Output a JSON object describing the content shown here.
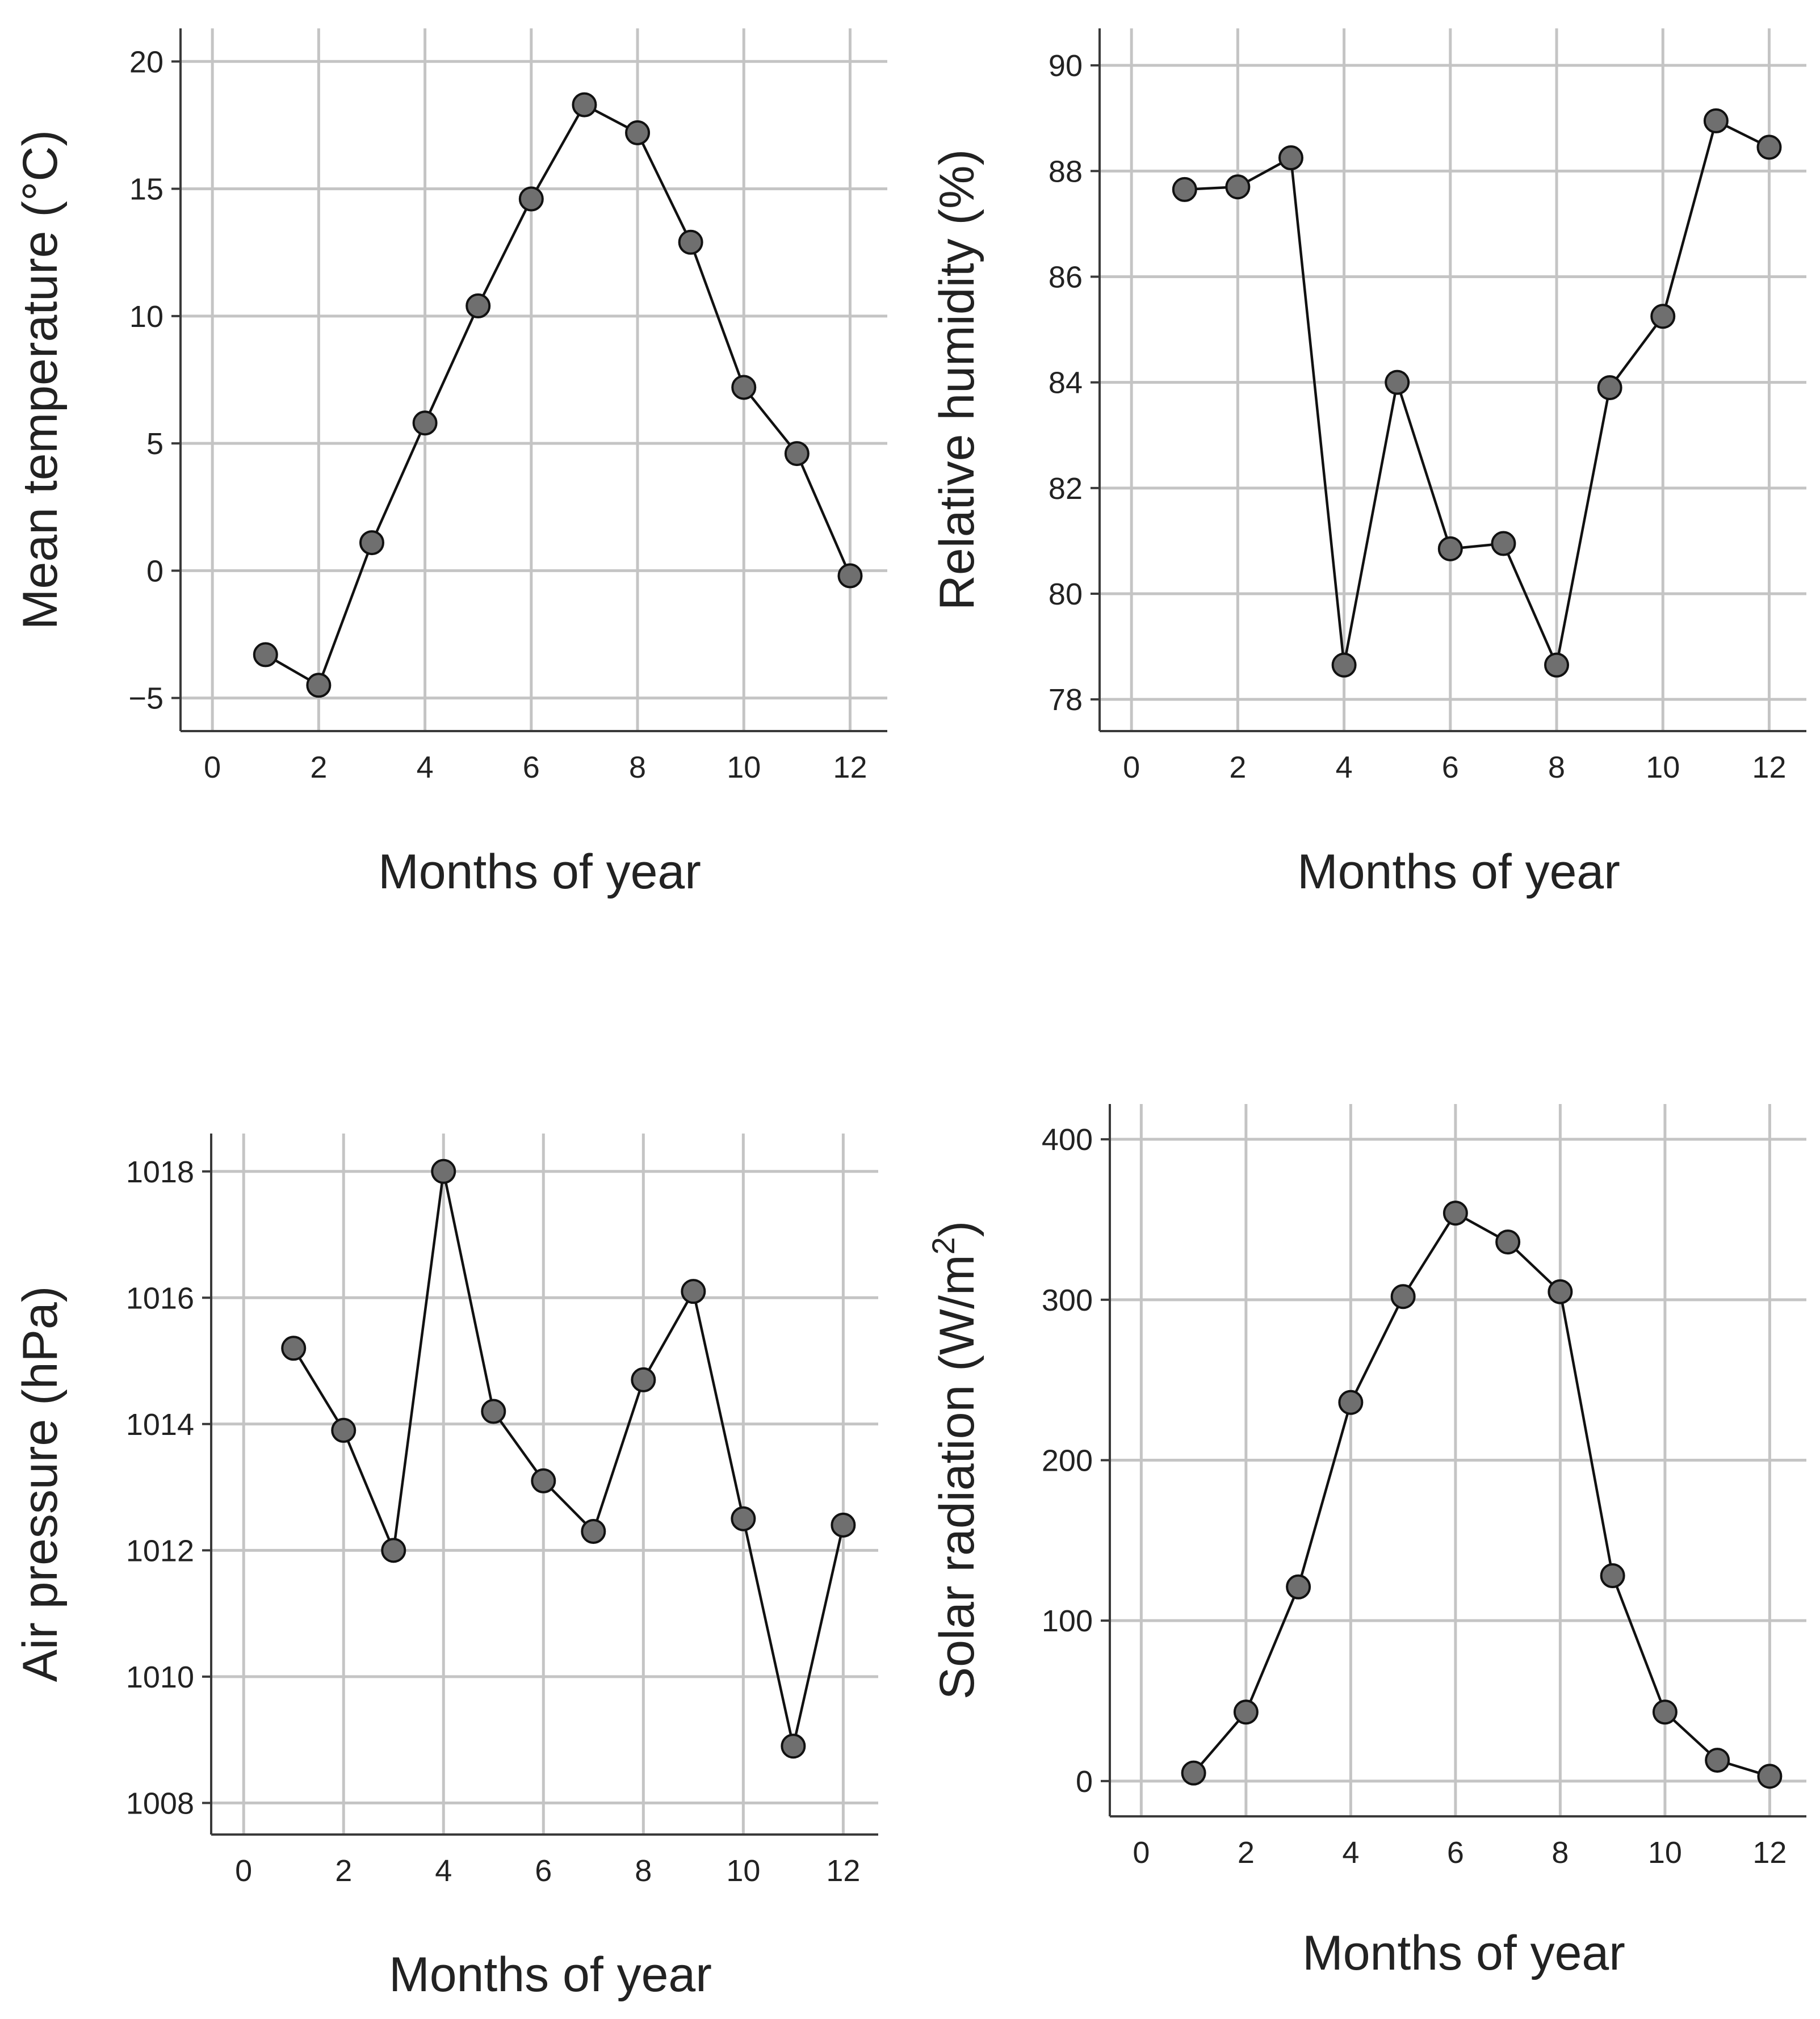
{
  "colors": {
    "marker_fill": "#6f6f6f",
    "line": "#111111",
    "grid": "#c4c4c4",
    "background": "#ffffff"
  },
  "chart_data": [
    {
      "type": "line",
      "xlabel": "Months of year",
      "ylabel": "Mean temperature (°C)",
      "ylabel_main": "Mean temperature (°C)",
      "ylabel_sup": "",
      "ylabel_tail": "",
      "xlim": [
        -0.6,
        12.7
      ],
      "ylim": [
        -6.3,
        21.3
      ],
      "xticks": [
        "0",
        "2",
        "4",
        "6",
        "8",
        "10",
        "12"
      ],
      "xtick_values": [
        0,
        2,
        4,
        6,
        8,
        10,
        12
      ],
      "yticks": [
        "20",
        "15",
        "10",
        "5",
        "0",
        "−5"
      ],
      "ytick_values": [
        20,
        15,
        10,
        5,
        0,
        -5
      ],
      "grid": true,
      "x": [
        1,
        2,
        3,
        4,
        5,
        6,
        7,
        8,
        9,
        10,
        11,
        12
      ],
      "y": [
        -3.3,
        -4.5,
        1.1,
        5.8,
        10.4,
        14.6,
        18.3,
        17.2,
        12.9,
        7.2,
        4.6,
        -0.2
      ]
    },
    {
      "type": "line",
      "xlabel": "Months of year",
      "ylabel": "Relative humidity (%)",
      "ylabel_main": "Relative humidity (%)",
      "ylabel_sup": "",
      "ylabel_tail": "",
      "xlim": [
        -0.6,
        12.7
      ],
      "ylim": [
        77.4,
        90.7
      ],
      "xticks": [
        "0",
        "2",
        "4",
        "6",
        "8",
        "10",
        "12"
      ],
      "xtick_values": [
        0,
        2,
        4,
        6,
        8,
        10,
        12
      ],
      "yticks": [
        "90",
        "88",
        "86",
        "84",
        "82",
        "80",
        "78"
      ],
      "ytick_values": [
        90,
        88,
        86,
        84,
        82,
        80,
        78
      ],
      "grid": true,
      "x": [
        1,
        2,
        3,
        4,
        5,
        6,
        7,
        8,
        9,
        10,
        11,
        12
      ],
      "y": [
        87.65,
        87.7,
        88.25,
        78.65,
        84.0,
        80.85,
        80.95,
        78.65,
        83.9,
        85.25,
        88.95,
        88.45
      ]
    },
    {
      "type": "line",
      "xlabel": "Months of year",
      "ylabel": "Air pressure (hPa)",
      "ylabel_main": "Air pressure (hPa)",
      "ylabel_sup": "",
      "ylabel_tail": "",
      "xlim": [
        -0.65,
        12.7
      ],
      "ylim": [
        1007.5,
        1018.6
      ],
      "xticks": [
        "0",
        "2",
        "4",
        "6",
        "8",
        "10",
        "12"
      ],
      "xtick_values": [
        0,
        2,
        4,
        6,
        8,
        10,
        12
      ],
      "yticks": [
        "1018",
        "1016",
        "1014",
        "1012",
        "1010",
        "1008"
      ],
      "ytick_values": [
        1018,
        1016,
        1014,
        1012,
        1010,
        1008
      ],
      "grid": true,
      "x": [
        1,
        2,
        3,
        4,
        5,
        6,
        7,
        8,
        9,
        10,
        11,
        12
      ],
      "y": [
        1015.2,
        1013.9,
        1012.0,
        1018.0,
        1014.2,
        1013.1,
        1012.3,
        1014.7,
        1016.1,
        1012.5,
        1008.9,
        1012.4
      ]
    },
    {
      "type": "line",
      "xlabel": "Months of year",
      "ylabel": "Solar radiation (W/m²)",
      "ylabel_main": "Solar radiation (W/m",
      "ylabel_sup": "2",
      "ylabel_tail": ")",
      "xlim": [
        -0.6,
        12.7
      ],
      "ylim": [
        -22,
        422
      ],
      "xticks": [
        "0",
        "2",
        "4",
        "6",
        "8",
        "10",
        "12"
      ],
      "xtick_values": [
        0,
        2,
        4,
        6,
        8,
        10,
        12
      ],
      "yticks": [
        "400",
        "300",
        "200",
        "100",
        "0"
      ],
      "ytick_values": [
        400,
        300,
        200,
        100,
        0
      ],
      "grid": true,
      "x": [
        1,
        2,
        3,
        4,
        5,
        6,
        7,
        8,
        9,
        10,
        11,
        12
      ],
      "y": [
        5,
        43,
        121,
        236,
        302,
        354,
        336,
        305,
        128,
        43,
        13,
        3
      ]
    }
  ]
}
